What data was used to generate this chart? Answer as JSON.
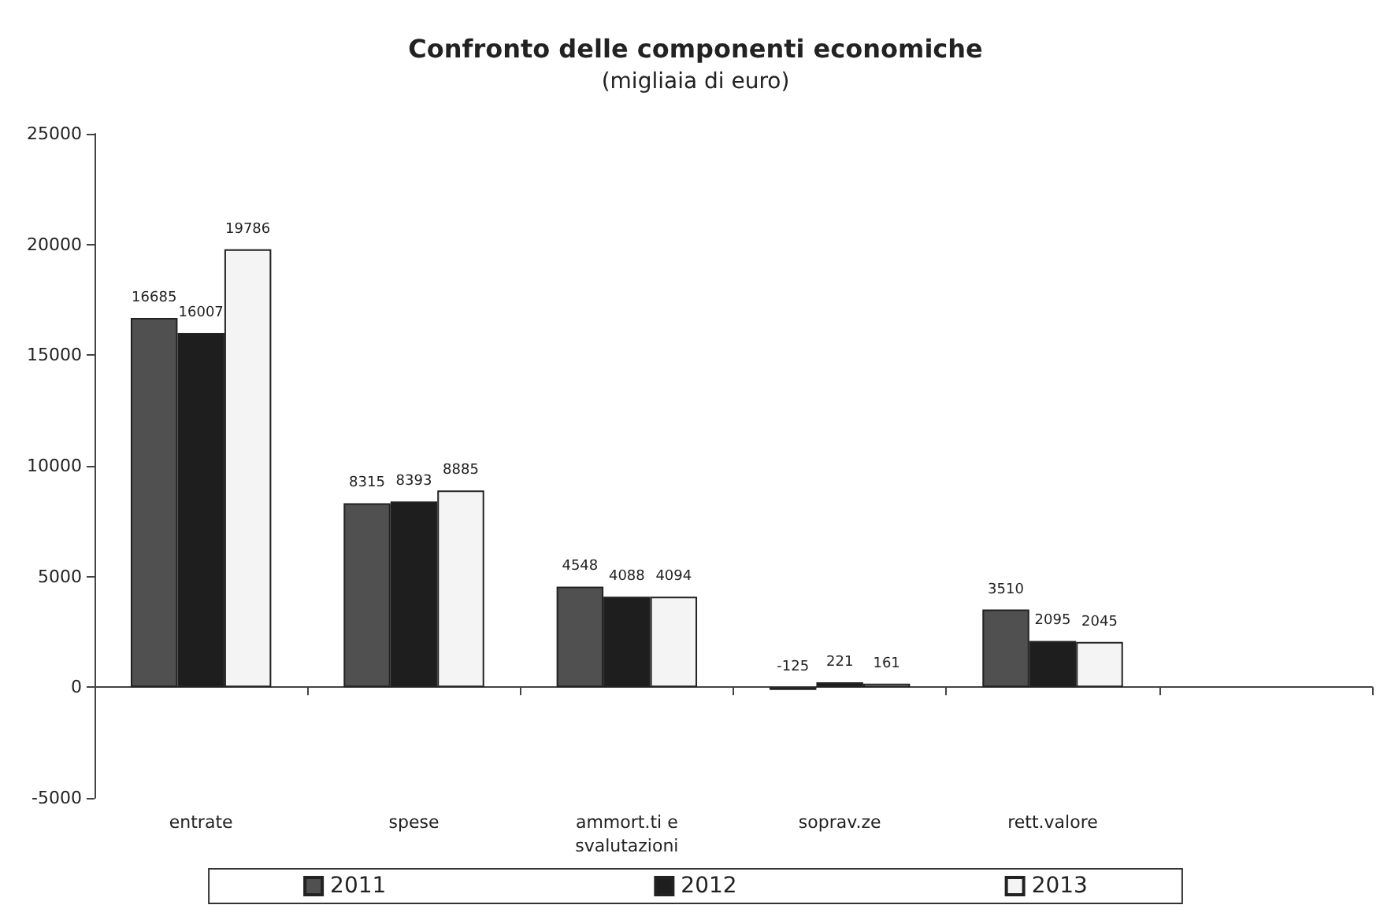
{
  "chart_data": {
    "type": "bar",
    "title": "Confronto delle componenti economiche",
    "subtitle": "(migliaia di euro)",
    "categories": [
      "entrate",
      "spese",
      "ammort.ti e\nsvalutazioni",
      "soprav.ze",
      "rett.valore",
      null
    ],
    "series": [
      {
        "name": "2011",
        "color": "#505050",
        "values": [
          16685,
          8315,
          4548,
          -125,
          3510,
          null
        ]
      },
      {
        "name": "2012",
        "color": "#1e1e1e",
        "values": [
          16007,
          8393,
          4088,
          221,
          2095,
          null
        ]
      },
      {
        "name": "2013",
        "color": "#f4f4f4",
        "values": [
          19786,
          8885,
          4094,
          161,
          2045,
          null
        ]
      }
    ],
    "ylim": [
      -5000,
      25000
    ],
    "yticks": [
      -5000,
      0,
      5000,
      10000,
      15000,
      20000,
      25000
    ],
    "data_labels": true,
    "legend": "bottom"
  }
}
